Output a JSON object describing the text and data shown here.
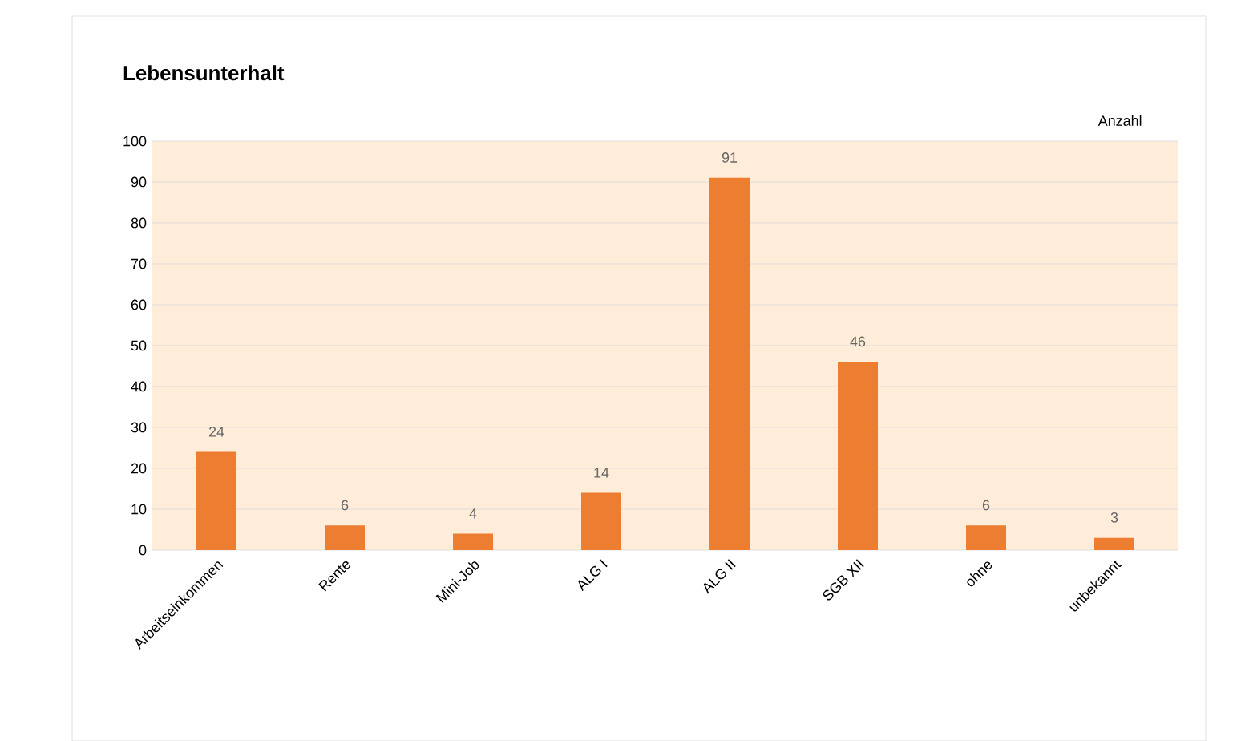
{
  "chart_data": {
    "type": "bar",
    "title": "Lebensunterhalt",
    "ylabel": "Anzahl",
    "categories": [
      "Arbeitseinkommen",
      "Rente",
      "Mini-Job",
      "ALG I",
      "ALG II",
      "SGB XII",
      "ohne",
      "unbekannt"
    ],
    "values": [
      24,
      6,
      4,
      14,
      91,
      46,
      6,
      3
    ],
    "color": "#ed7d31",
    "ylim": [
      0,
      100
    ],
    "yticks": [
      0,
      10,
      20,
      30,
      40,
      50,
      60,
      70,
      80,
      90,
      100
    ],
    "grid": "y",
    "data_labels": true
  }
}
